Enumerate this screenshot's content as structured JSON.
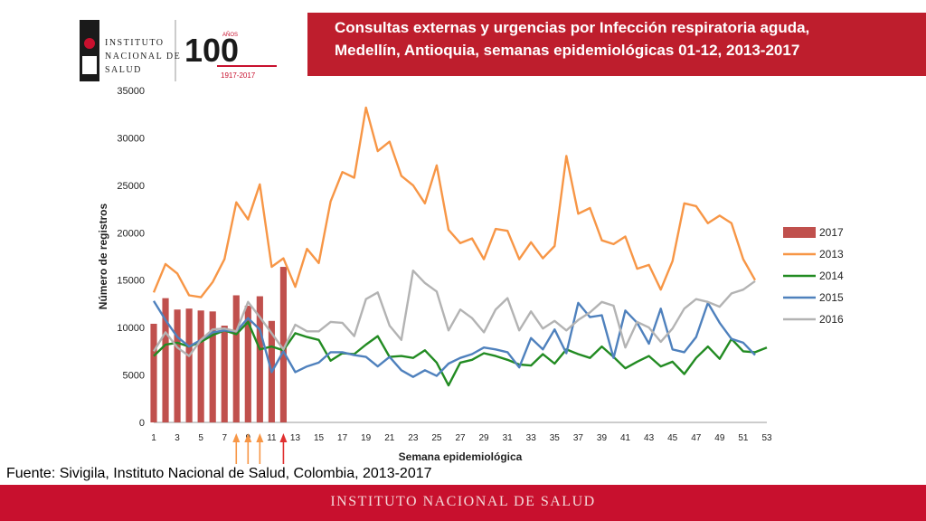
{
  "header": {
    "title_line1": "Consultas externas y urgencias por Infección respiratoria aguda,",
    "title_line2": "Medellín, Antioquia, semanas epidemiológicas 01-12, 2013-2017"
  },
  "logo": {
    "line1": "Instituto",
    "line2": "Nacional de",
    "line3": "Salud",
    "anniversary": "100",
    "anniversary_label": "AÑOS",
    "years": "1917-2017"
  },
  "source": "Fuente: Sivigila, Instituto Nacional de Salud, Colombia, 2013-2017",
  "footer": "INSTITUTO NACIONAL DE SALUD",
  "colors": {
    "header": "#be1e2d",
    "footer": "#c8102e",
    "s2017": "#c0504d",
    "s2013": "#f79646",
    "s2014": "#228b22",
    "s2015": "#4f81bd",
    "s2016": "#b3b3b3",
    "arrow_orange": "#f79646",
    "arrow_red": "#e03030"
  },
  "chart_data": {
    "type": "bar+line",
    "xlabel": "Semana epidemiológica",
    "ylabel": "Número de registros",
    "ylim": [
      0,
      35000
    ],
    "yticks": [
      0,
      5000,
      10000,
      15000,
      20000,
      25000,
      30000,
      35000
    ],
    "xticks": [
      1,
      3,
      5,
      7,
      9,
      11,
      13,
      15,
      17,
      19,
      21,
      23,
      25,
      27,
      29,
      31,
      33,
      35,
      37,
      39,
      41,
      43,
      45,
      47,
      49,
      51,
      53
    ],
    "x_range": [
      1,
      53
    ],
    "legend": [
      "2017",
      "2013",
      "2014",
      "2015",
      "2016"
    ],
    "arrow_weeks_orange": [
      8,
      9,
      10
    ],
    "arrow_weeks_red": [
      12
    ],
    "bars": {
      "name": "2017",
      "weeks": [
        1,
        2,
        3,
        4,
        5,
        6,
        7,
        8,
        9,
        10,
        11,
        12
      ],
      "values": [
        10400,
        13100,
        11900,
        12000,
        11800,
        11700,
        10200,
        13400,
        12300,
        13300,
        10700,
        16400
      ]
    },
    "series": [
      {
        "name": "2013",
        "start": 1,
        "values": [
          13700,
          16700,
          15700,
          13400,
          13200,
          14800,
          17200,
          23200,
          21400,
          25100,
          16400,
          17300,
          14300,
          18300,
          16800,
          23300,
          26400,
          25800,
          33200,
          28600,
          29600,
          26000,
          25000,
          23100,
          27100,
          20300,
          18900,
          19400,
          17200,
          20400,
          20200,
          17200,
          19000,
          17300,
          18600,
          28100,
          22000,
          22600,
          19200,
          18800,
          19600,
          16200,
          16600,
          14000,
          17000,
          23100,
          22800,
          21000,
          21800,
          21000,
          17200,
          15000
        ]
      },
      {
        "name": "2014",
        "start": 1,
        "values": [
          7000,
          8200,
          8400,
          8000,
          8500,
          9200,
          9700,
          9300,
          10600,
          7700,
          8000,
          7600,
          9400,
          9000,
          8700,
          6500,
          7300,
          7200,
          8200,
          9100,
          6900,
          7000,
          6800,
          7600,
          6300,
          3900,
          6300,
          6600,
          7300,
          7000,
          6600,
          6100,
          6000,
          7200,
          6200,
          7700,
          7200,
          6800,
          8000,
          6900,
          5700,
          6400,
          7000,
          5900,
          6400,
          5100,
          6800,
          8000,
          6700,
          8800,
          7500,
          7400,
          7900
        ]
      },
      {
        "name": "2015",
        "start": 1,
        "values": [
          12800,
          10800,
          9000,
          8000,
          8700,
          9500,
          9700,
          9600,
          11000,
          9800,
          5300,
          7500,
          5300,
          5900,
          6300,
          7400,
          7400,
          7100,
          6900,
          5900,
          6900,
          5500,
          4800,
          5500,
          4900,
          6200,
          6800,
          7200,
          7900,
          7700,
          7400,
          5800,
          8900,
          7700,
          9800,
          7300,
          12600,
          11100,
          11300,
          6800,
          11800,
          10500,
          8300,
          12000,
          7700,
          7400,
          9000,
          12600,
          10500,
          8800,
          8400,
          7100
        ]
      },
      {
        "name": "2016",
        "start": 1,
        "values": [
          7500,
          9500,
          7900,
          7000,
          8700,
          9800,
          9900,
          9600,
          12700,
          11100,
          9400,
          7700,
          10300,
          9600,
          9600,
          10600,
          10500,
          9100,
          13000,
          13700,
          10200,
          8700,
          16000,
          14700,
          13800,
          9700,
          11900,
          11000,
          9500,
          11900,
          13100,
          9700,
          11700,
          9900,
          10700,
          9700,
          10800,
          11600,
          12700,
          12300,
          7900,
          10600,
          10000,
          8500,
          9900,
          12000,
          13000,
          12700,
          12200,
          13600,
          14000,
          14900
        ]
      }
    ]
  }
}
